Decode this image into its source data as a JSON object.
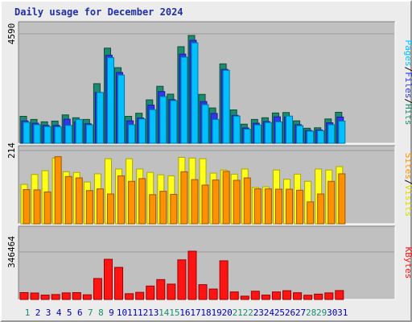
{
  "title": "Daily usage for December 2024",
  "colors": {
    "panel_bg": "#c0c0c0",
    "pages": "#00c0ff",
    "pages_shade": "#007aa8",
    "files": "#2f38e8",
    "files_shade": "#1a1f9c",
    "hits": "#1d8c6e",
    "hits_shade": "#0d4a38",
    "visits": "#ffff1a",
    "visits_shade": "#a8a800",
    "sites": "#ff9000",
    "sites_shade": "#9c5800",
    "kbytes": "#ff1414",
    "kbytes_shade": "#9c0000",
    "weekend_label": "#1d8c6e",
    "weekday_label": "#0000b0"
  },
  "chart_data": [
    {
      "type": "bar",
      "panel": "pages_files_hits",
      "ytick_label": "4590",
      "ymax": 4590,
      "legend": [
        "Pages",
        "Files",
        "Hits"
      ],
      "legend_separator": "/",
      "series": [
        {
          "name": "Hits",
          "values": [
            1130,
            1000,
            900,
            930,
            1190,
            1070,
            1000,
            2500,
            3990,
            3170,
            1130,
            1260,
            1820,
            2390,
            2060,
            4050,
            4520,
            2050,
            1480,
            3330,
            1400,
            800,
            1000,
            1070,
            1270,
            1290,
            940,
            630,
            650,
            1020,
            1300
          ]
        },
        {
          "name": "Files",
          "values": [
            940,
            840,
            750,
            750,
            1010,
            890,
            820,
            2130,
            3690,
            2970,
            940,
            1060,
            1600,
            2170,
            1830,
            3740,
            4320,
            1750,
            1250,
            3100,
            1170,
            640,
            840,
            910,
            1110,
            1100,
            780,
            540,
            560,
            860,
            1100
          ]
        },
        {
          "name": "Pages",
          "values": [
            880,
            780,
            700,
            690,
            750,
            1000,
            770,
            2130,
            3590,
            2860,
            780,
            1020,
            1410,
            1960,
            1790,
            3610,
            4210,
            1620,
            1000,
            3060,
            1140,
            590,
            770,
            870,
            900,
            1140,
            740,
            510,
            530,
            780,
            930
          ]
        }
      ]
    },
    {
      "type": "bar",
      "panel": "sites_visits",
      "ytick_label": "214",
      "ymax": 214,
      "legend": [
        "Sites",
        "Visits"
      ],
      "legend_separator": "/",
      "series": [
        {
          "name": "Visits",
          "values": [
            115,
            144,
            155,
            192,
            152,
            150,
            122,
            146,
            190,
            160,
            190,
            160,
            150,
            143,
            140,
            194,
            192,
            190,
            148,
            157,
            145,
            160,
            106,
            108,
            157,
            130,
            145,
            124,
            160,
            157,
            167
          ]
        },
        {
          "name": "Sites",
          "values": [
            100,
            99,
            93,
            196,
            138,
            134,
            97,
            102,
            87,
            140,
            124,
            132,
            85,
            95,
            86,
            152,
            129,
            113,
            128,
            153,
            127,
            134,
            102,
            102,
            101,
            101,
            98,
            64,
            87,
            124,
            146
          ]
        }
      ]
    },
    {
      "type": "bar",
      "panel": "kbytes",
      "ytick_label": "346464",
      "ymax": 346464,
      "legend": [
        "KBytes"
      ],
      "series": [
        {
          "name": "KBytes",
          "values": [
            50000,
            47000,
            32000,
            36000,
            48000,
            50000,
            34000,
            153000,
            293000,
            234000,
            42000,
            52000,
            98000,
            145000,
            112000,
            289000,
            352000,
            108000,
            76000,
            282000,
            55000,
            24000,
            60000,
            32000,
            55000,
            64000,
            49000,
            31000,
            39000,
            48000,
            65000
          ]
        }
      ]
    }
  ],
  "days": [
    "1",
    "2",
    "3",
    "4",
    "5",
    "6",
    "7",
    "8",
    "9",
    "10",
    "11",
    "12",
    "13",
    "14",
    "15",
    "16",
    "17",
    "18",
    "19",
    "20",
    "21",
    "22",
    "23",
    "24",
    "25",
    "26",
    "27",
    "28",
    "29",
    "30",
    "31"
  ],
  "weekend_days": [
    1,
    7,
    8,
    14,
    15,
    21,
    22,
    28,
    29
  ]
}
